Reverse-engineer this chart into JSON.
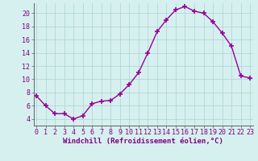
{
  "x": [
    0,
    1,
    2,
    3,
    4,
    5,
    6,
    7,
    8,
    9,
    10,
    11,
    12,
    13,
    14,
    15,
    16,
    17,
    18,
    19,
    20,
    21,
    22,
    23
  ],
  "y": [
    7.5,
    6.0,
    4.8,
    4.8,
    4.0,
    4.5,
    6.3,
    6.7,
    6.8,
    7.8,
    9.2,
    11.0,
    14.0,
    17.2,
    19.0,
    20.5,
    21.0,
    20.3,
    20.0,
    18.7,
    17.0,
    15.0,
    10.5,
    10.2
  ],
  "line_color": "#990099",
  "marker": "+",
  "marker_size": 4,
  "marker_lw": 1.2,
  "line_width": 1.0,
  "bg_color": "#d6f0ef",
  "grid_color": "#b0d8d8",
  "xlabel": "Windchill (Refroidissement éolien,°C)",
  "yticks": [
    4,
    6,
    8,
    10,
    12,
    14,
    16,
    18,
    20
  ],
  "xticks": [
    0,
    1,
    2,
    3,
    4,
    5,
    6,
    7,
    8,
    9,
    10,
    11,
    12,
    13,
    14,
    15,
    16,
    17,
    18,
    19,
    20,
    21,
    22,
    23
  ],
  "xlim": [
    -0.3,
    23.3
  ],
  "ylim": [
    3.0,
    21.5
  ],
  "axis_fontsize": 6.5,
  "tick_fontsize": 6.0,
  "label_color": "#800080"
}
